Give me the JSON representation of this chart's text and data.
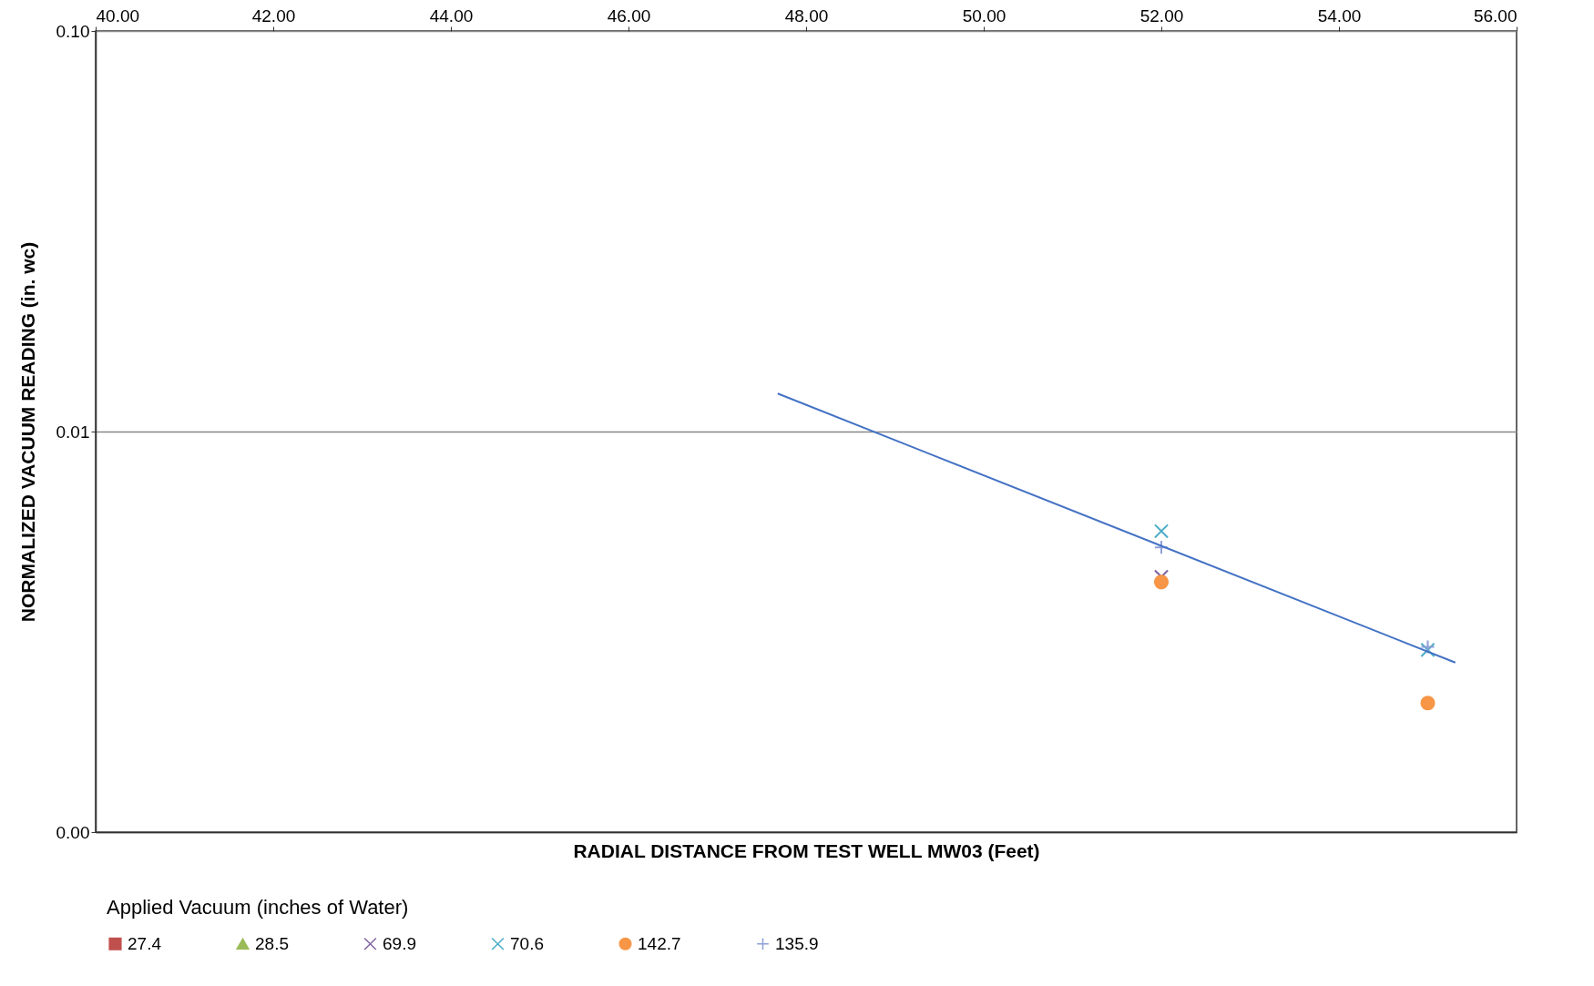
{
  "chart_data": {
    "type": "scatter",
    "xlabel": "RADIAL DISTANCE FROM TEST WELL MW03 (Feet)",
    "ylabel": "NORMALIZED VACUUM READING (in. wc)",
    "legend_title": "Applied Vacuum (inches of Water)",
    "log": "y",
    "grid": "y",
    "legend": "bottom",
    "xlim": [
      40,
      56
    ],
    "xticks": [
      {
        "value": 40,
        "label": "40.00"
      },
      {
        "value": 42,
        "label": "42.00"
      },
      {
        "value": 44,
        "label": "44.00"
      },
      {
        "value": 46,
        "label": "46.00"
      },
      {
        "value": 48,
        "label": "48.00"
      },
      {
        "value": 50,
        "label": "50.00"
      },
      {
        "value": 52,
        "label": "52.00"
      },
      {
        "value": 54,
        "label": "54.00"
      },
      {
        "value": 56,
        "label": "56.00"
      }
    ],
    "ylim": [
      0.001,
      0.1
    ],
    "yticks": [
      {
        "value": 0.001,
        "label": "0.00"
      },
      {
        "value": 0.01,
        "label": "0.01"
      },
      {
        "value": 0.1,
        "label": "0.10"
      }
    ],
    "series": [
      {
        "name": "27.4",
        "color": "#c0504d",
        "marker": "square"
      },
      {
        "name": "28.5",
        "color": "#9bbb59",
        "marker": "triangle"
      },
      {
        "name": "69.9",
        "color": "#8064a2",
        "marker": "cross",
        "x": [
          52
        ],
        "values": [
          0.00434
        ]
      },
      {
        "name": "70.6",
        "color": "#4bacc6",
        "marker": "cross",
        "x": [
          52,
          55
        ],
        "values": [
          0.00564,
          0.00285
        ]
      },
      {
        "name": "142.7",
        "color": "#f79646",
        "marker": "circle",
        "x": [
          52,
          55
        ],
        "values": [
          0.00421,
          0.0021
        ]
      },
      {
        "name": "135.9",
        "color": "#8ea0d8",
        "marker": "plus",
        "x": [
          52,
          55
        ],
        "values": [
          0.00514,
          0.0029
        ]
      },
      {
        "type": "line",
        "color": "#4472c4",
        "line_style": "solid",
        "x": [
          47.68,
          55.31
        ],
        "values": [
          0.01244,
          0.00265
        ]
      }
    ]
  }
}
